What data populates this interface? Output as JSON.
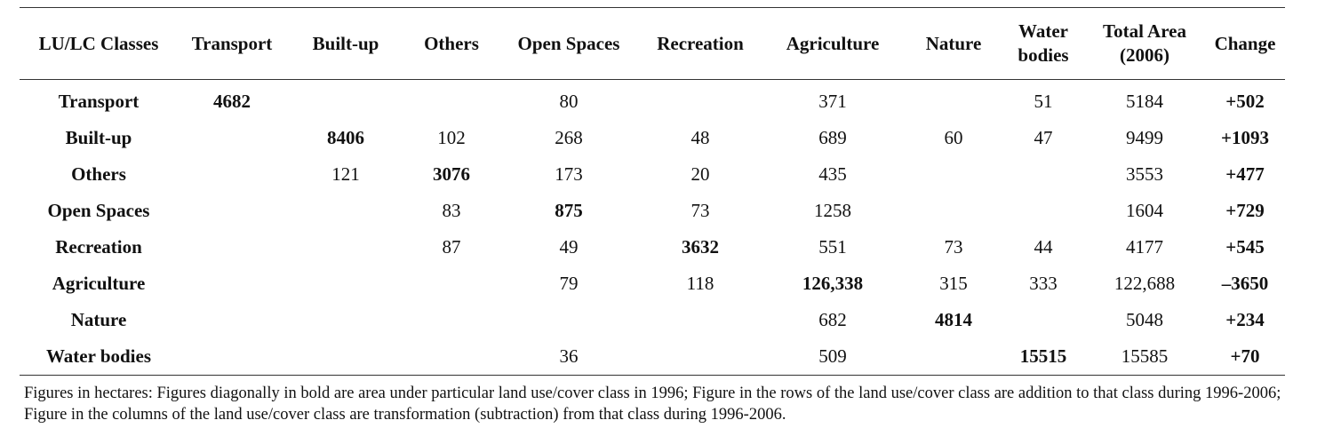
{
  "table": {
    "headers": [
      "LU/LC Classes",
      "Transport",
      "Built-up",
      "Others",
      "Open Spaces",
      "Recreation",
      "Agriculture",
      "Nature",
      "Water bodies",
      "Total Area (2006)",
      "Change"
    ],
    "rows": [
      {
        "label": "Transport",
        "cells": [
          "4682",
          "",
          "",
          "80",
          "",
          "371",
          "",
          "51",
          "5184"
        ],
        "change": "+502"
      },
      {
        "label": "Built-up",
        "cells": [
          "",
          "8406",
          "102",
          "268",
          "48",
          "689",
          "60",
          "47",
          "9499"
        ],
        "change": "+1093"
      },
      {
        "label": "Others",
        "cells": [
          "",
          "121",
          "3076",
          "173",
          "20",
          "435",
          "",
          "",
          "3553"
        ],
        "change": "+477"
      },
      {
        "label": "Open Spaces",
        "cells": [
          "",
          "",
          "83",
          "875",
          "73",
          "1258",
          "",
          "",
          "1604"
        ],
        "change": "+729"
      },
      {
        "label": "Recreation",
        "cells": [
          "",
          "",
          "87",
          "49",
          "3632",
          "551",
          "73",
          "44",
          "4177"
        ],
        "change": "+545"
      },
      {
        "label": "Agriculture",
        "cells": [
          "",
          "",
          "",
          "79",
          "118",
          "126,338",
          "315",
          "333",
          "122,688"
        ],
        "change": "–3650"
      },
      {
        "label": "Nature",
        "cells": [
          "",
          "",
          "",
          "",
          "",
          "682",
          "4814",
          "",
          "5048"
        ],
        "change": "+234"
      },
      {
        "label": "Water bodies",
        "cells": [
          "",
          "",
          "",
          "36",
          "",
          "509",
          "",
          "15515",
          "15585"
        ],
        "change": "+70"
      }
    ]
  },
  "footnote": "Figures in hectares: Figures diagonally in bold are area under particular land use/cover class in 1996; Figure in the rows of the land use/cover class are addition to that class during 1996-2006; Figure in the columns of the land use/cover class are transformation (subtraction) from that class during 1996-2006."
}
